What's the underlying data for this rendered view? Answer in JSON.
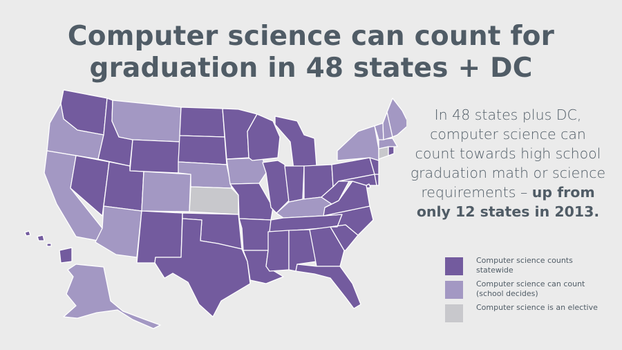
{
  "title": {
    "line1": "Computer science can count for",
    "line2": "graduation in 48 states + DC"
  },
  "description": {
    "text": "In 48 states plus DC, computer science can count towards high school graduation math or science requirements –",
    "highlight": "up from only 12 states in 2013."
  },
  "colors": {
    "statewide": "#735b9e",
    "school_decides": "#a398c3",
    "elective": "#c8c8cc",
    "background": "#ebebeb",
    "text": "#505c66"
  },
  "legend": [
    {
      "label": "Computer science counts statewide",
      "category": "statewide"
    },
    {
      "label": "Computer science can count (school decides)",
      "category": "school_decides"
    },
    {
      "label": "Computer science is an elective",
      "category": "elective"
    }
  ],
  "states": {
    "statewide": [
      "WA",
      "ID",
      "NV",
      "UT",
      "WY",
      "SD",
      "ND",
      "MN",
      "WI",
      "MI",
      "IL",
      "IN",
      "OH",
      "PA",
      "NJ",
      "DE",
      "MD",
      "VA",
      "WV",
      "NC",
      "SC",
      "GA",
      "FL",
      "AL",
      "MS",
      "TN",
      "AR",
      "LA",
      "MO",
      "OK",
      "TX",
      "NM",
      "HI",
      "RI",
      "DC"
    ],
    "school_decides": [
      "OR",
      "CA",
      "MT",
      "AZ",
      "CO",
      "NE",
      "IA",
      "KY",
      "NY",
      "VT",
      "NH",
      "ME",
      "MA",
      "AK"
    ],
    "elective": [
      "KS",
      "CT"
    ]
  }
}
